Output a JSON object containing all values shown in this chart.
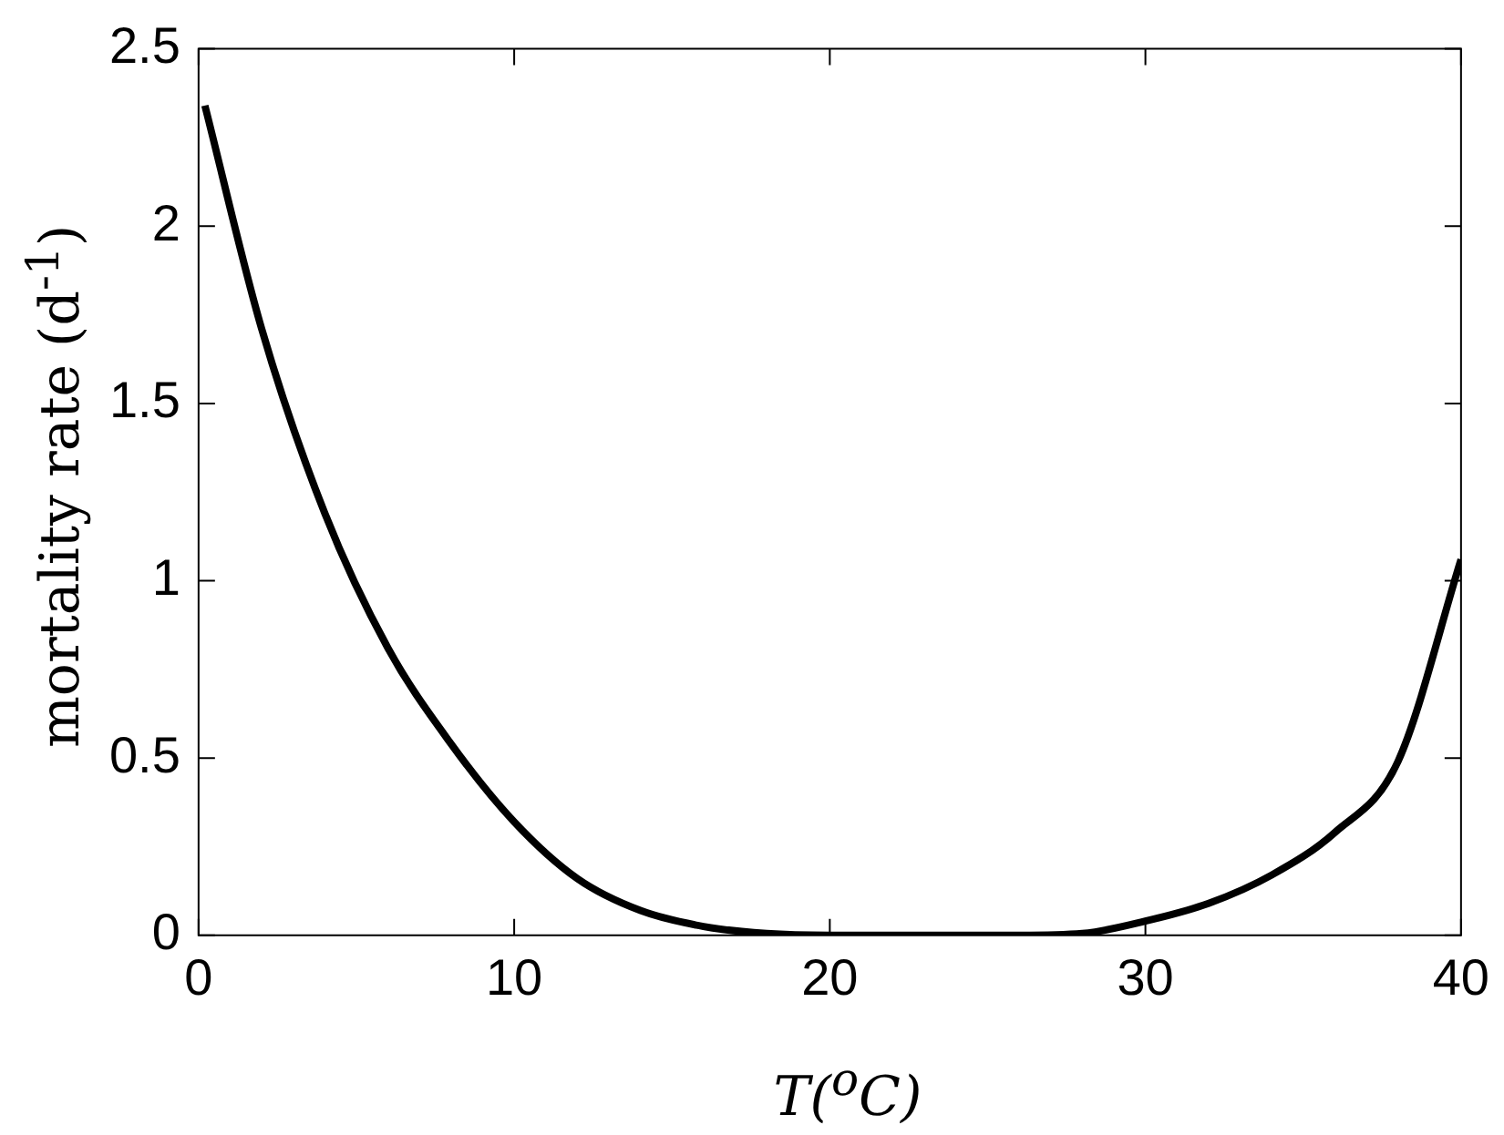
{
  "chart_data": {
    "type": "line",
    "xlabel": "T($^{o}$C)",
    "ylabel": "mortality rate (d$^{-1}$)",
    "x": [
      0.2,
      2,
      4,
      6,
      8,
      10,
      12,
      14,
      16,
      18,
      20,
      22,
      24,
      26,
      28,
      30,
      32,
      34,
      36,
      38,
      40
    ],
    "series": [
      {
        "color": "#000000",
        "values": [
          2.34,
          1.71,
          1.19,
          0.81,
          0.54,
          0.32,
          0.16,
          0.07,
          0.025,
          0.005,
          0,
          0,
          0,
          0,
          0.005,
          0.04,
          0.09,
          0.17,
          0.29,
          0.49,
          1.06
        ]
      }
    ],
    "xlim": [
      0,
      40
    ],
    "xticks": [
      0,
      10,
      20,
      30,
      40
    ],
    "ylim": [
      0,
      2.5
    ],
    "yticks": [
      0,
      0.5,
      1,
      1.5,
      2,
      2.5
    ],
    "grid": false,
    "legend": false,
    "marker": "none",
    "line_style": "solid"
  }
}
